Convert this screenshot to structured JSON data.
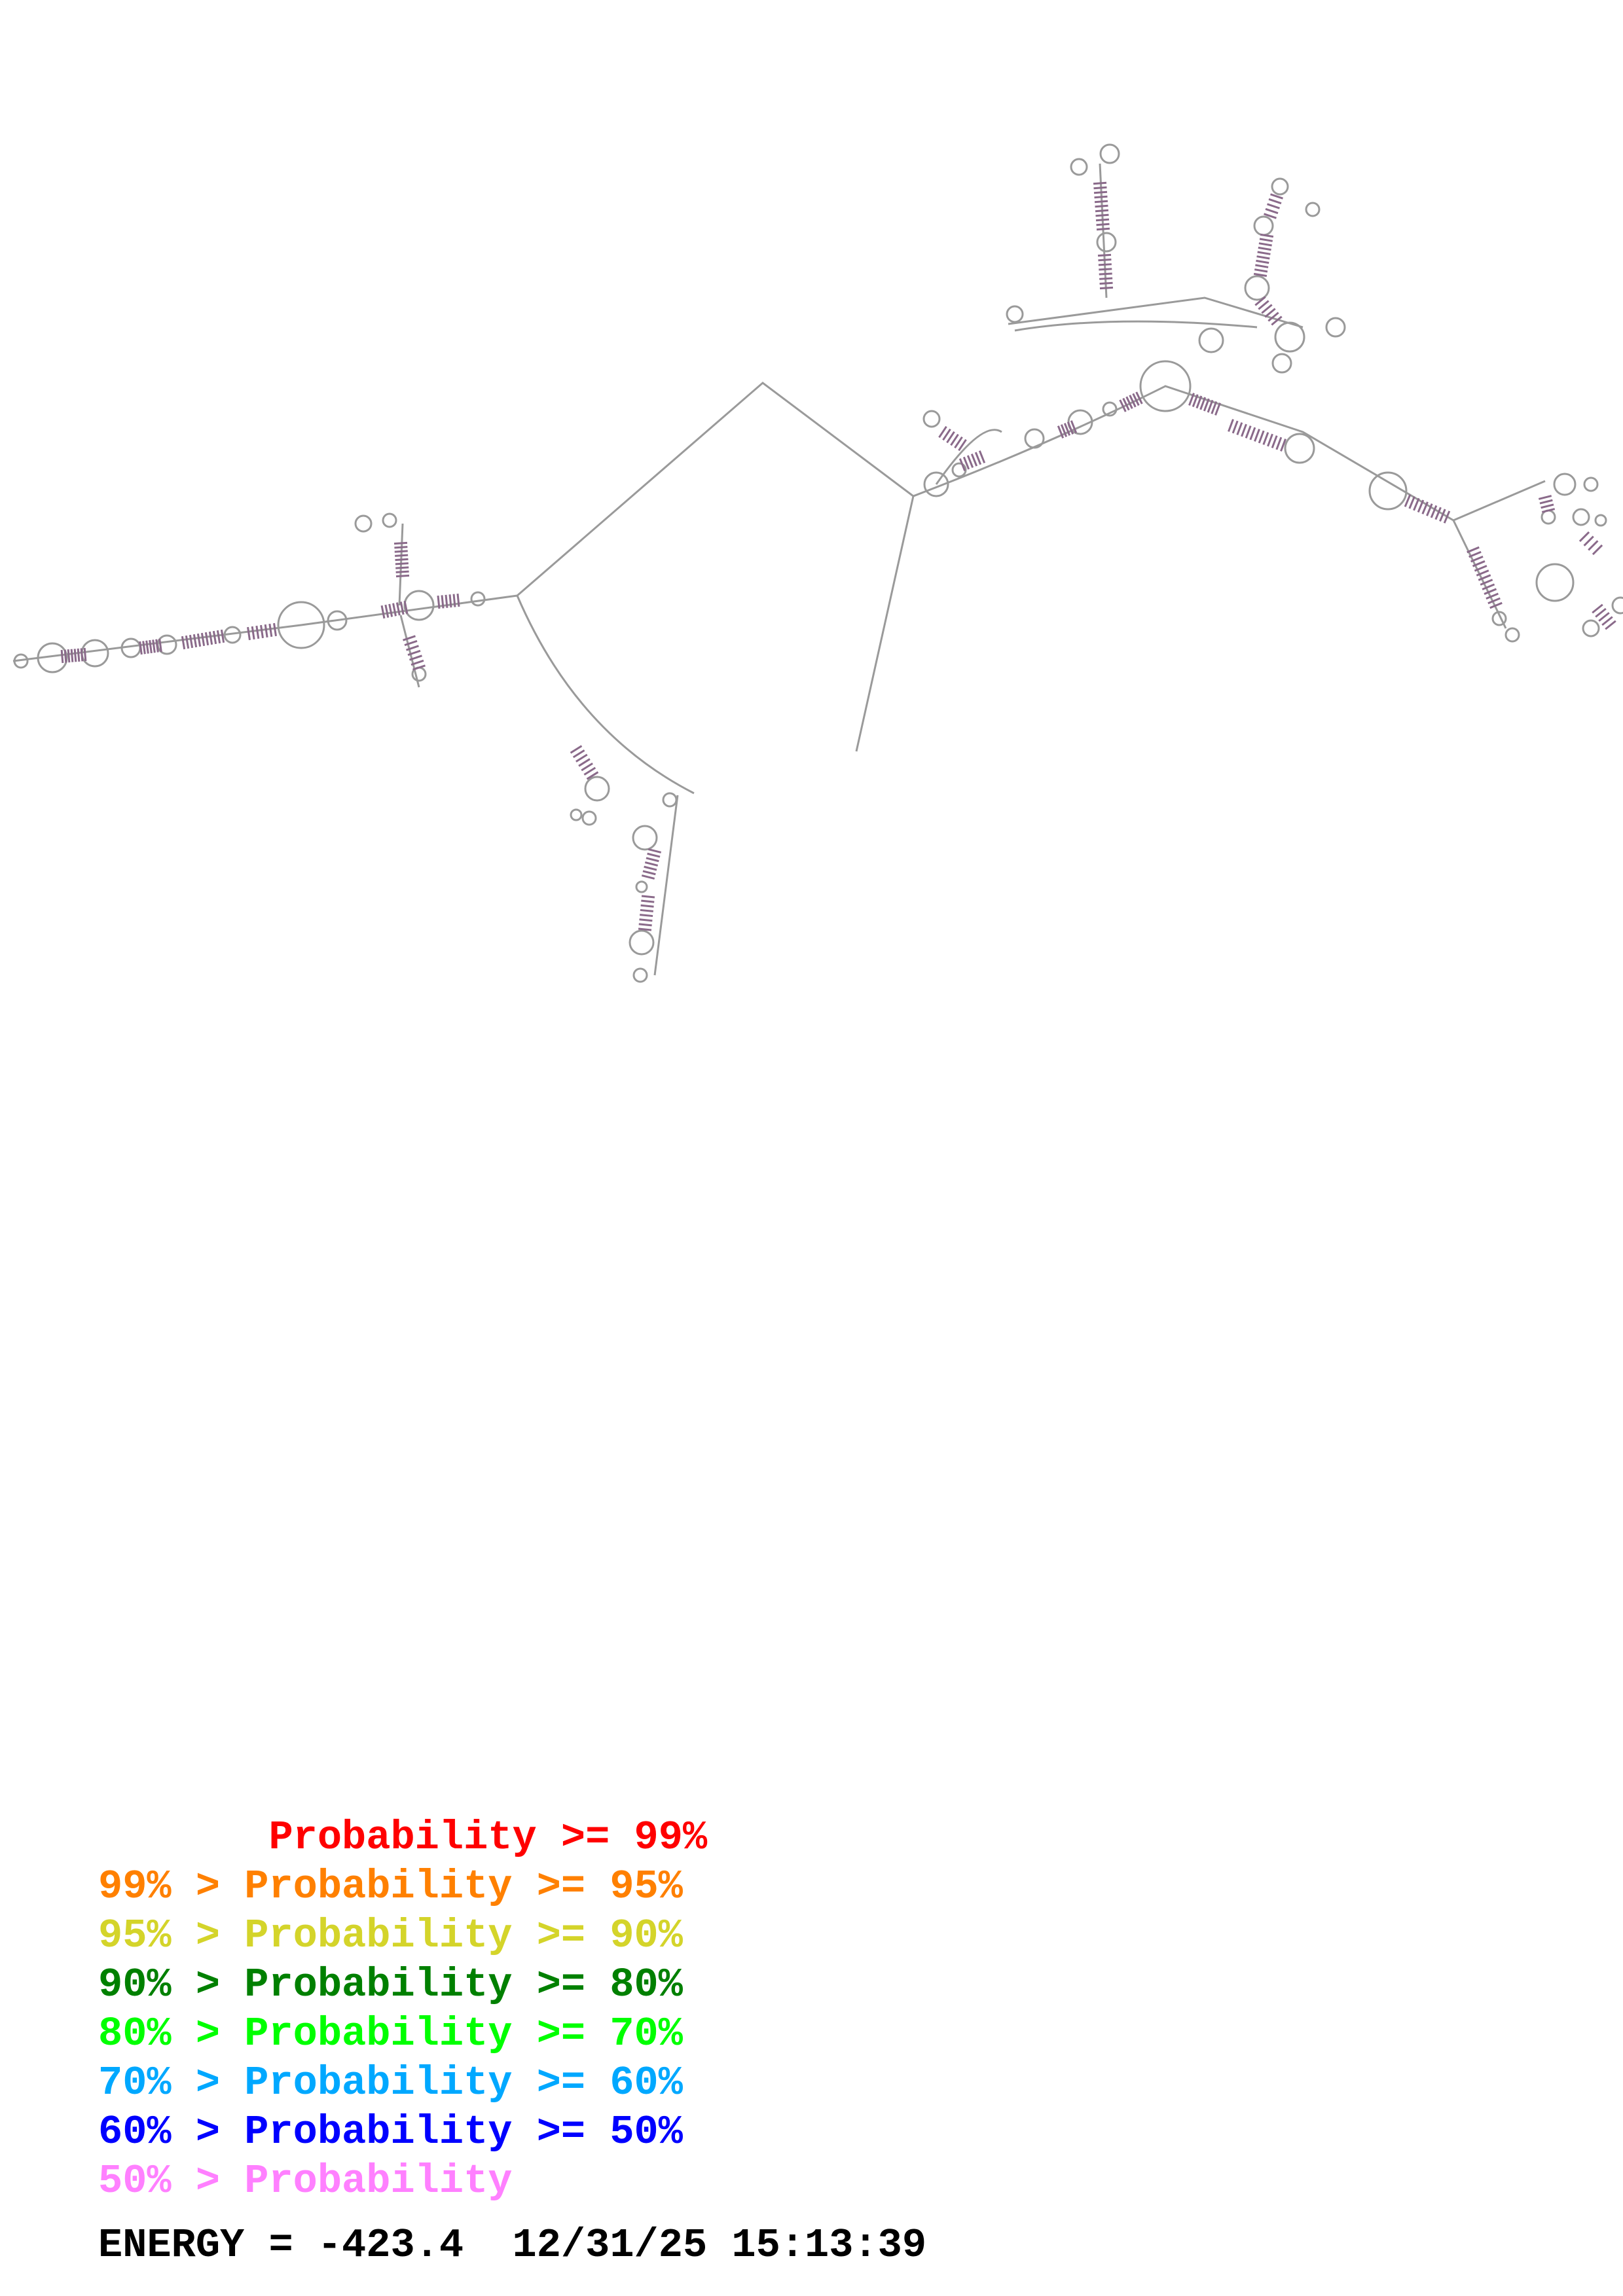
{
  "legend": [
    {
      "label": "       Probability >= 99%",
      "color": "#ff0000"
    },
    {
      "label": "99% > Probability >= 95%",
      "color": "#ff8000"
    },
    {
      "label": "95% > Probability >= 90%",
      "color": "#d4d42a"
    },
    {
      "label": "90% > Probability >= 80%",
      "color": "#008000"
    },
    {
      "label": "80% > Probability >= 70%",
      "color": "#00ff00"
    },
    {
      "label": "70% > Probability >= 60%",
      "color": "#00a8ff"
    },
    {
      "label": "60% > Probability >= 50%",
      "color": "#0000ff"
    },
    {
      "label": "50% > Probability",
      "color": "#ff80ff"
    }
  ],
  "footer": {
    "energy": "ENERGY = -423.4",
    "timestamp": "12/31/25 15:13:39"
  },
  "colors": {
    "backbone": "#9a9a9a",
    "nucleotide": "#8a6a8a",
    "background": "#ffffff"
  }
}
